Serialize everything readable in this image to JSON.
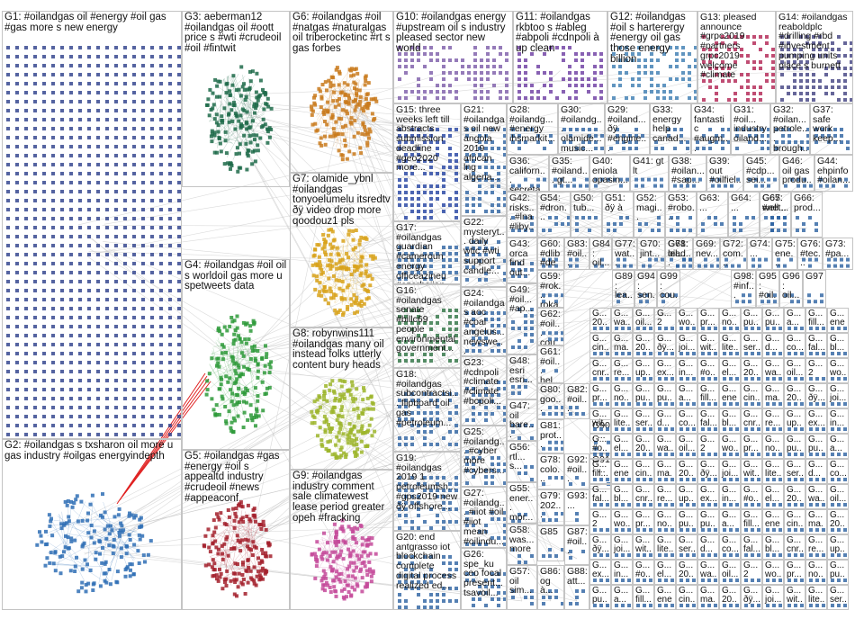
{
  "graph": {
    "groups": [
      {
        "id": "G1",
        "label": "G1: #oilandgas oil #energy #oil gas #gas more s new energy",
        "color": "#2a3d8a",
        "pattern": "grid"
      },
      {
        "id": "G2",
        "label": "G2: #oilandgas s txsharon oil more u gas industry #oilgas energyindepth",
        "color": "#2f6fb5",
        "pattern": "blob"
      },
      {
        "id": "G3",
        "label": "G3: aeberman12 #oilandgas oil #oott price s #wti #crudeoil #oil #fintwit",
        "color": "#1f6b4a",
        "pattern": "blob"
      },
      {
        "id": "G4",
        "label": "G4: #oilandgas #oil oil s worldoil gas more u spetweets data",
        "color": "#2e9a3a",
        "pattern": "blob"
      },
      {
        "id": "G5",
        "label": "G5: #oilandgas #gas #energy #oil s appealtd industry #crudeoil #news #appeaconf",
        "color": "#a3202c",
        "pattern": "blob"
      },
      {
        "id": "G6",
        "label": "G6: #oilandgas #oil #natgas #naturalgas oil triberocketinc #rt s gas forbes",
        "color": "#c97a1c",
        "pattern": "blob"
      },
      {
        "id": "G7",
        "label": "G7: olamide_ybnl #oilandgas tonyoelumelu itsredtv ðÿ video drop more qoodouz1 pls",
        "color": "#d8a21a",
        "pattern": "blob"
      },
      {
        "id": "G8",
        "label": "G8: robynwins111 #oilandgas many oil instead folks utterly content bury heads",
        "color": "#9cb52a",
        "pattern": "blob"
      },
      {
        "id": "G9",
        "label": "G9: #oilandgas industry comment sale climatewest lease period greater opeh #fracking",
        "color": "#c44a9a",
        "pattern": "blob"
      },
      {
        "id": "G10",
        "label": "G10: #oilandgas energy #upstream oil s industry pleased sector new world",
        "color": "#7a5aa8",
        "pattern": "grid"
      },
      {
        "id": "G11",
        "label": "G11: #oilandgas rkbtoo s #ableg #abpoli #cdnpoli à up clean",
        "color": "#6a3aa0",
        "pattern": "grid"
      },
      {
        "id": "G12",
        "label": "G12: #oilandgas #oil s harterergy #energy oil gas those energy billion",
        "color": "#3a7ab0",
        "pattern": "grid"
      },
      {
        "id": "G13",
        "label": "G13: pleased announce #grpc2019 #partners grpc2019 welcome #climate",
        "color": "#b02050",
        "pattern": "grid"
      },
      {
        "id": "G14",
        "label": "G14: #oilandgas reaboldplc #drilling #rbd #investment pumping units place s burnett",
        "color": "#404080",
        "pattern": "grid"
      },
      {
        "id": "G15",
        "label": "G15: three weeks left till abstracts submission deadline #geo2020 more...",
        "color": "#2040a0",
        "pattern": "grid"
      },
      {
        "id": "G16",
        "label": "G16: #oilandgas senate #billc69 people environmental government...",
        "color": "#2a7040",
        "pattern": "grid"
      },
      {
        "id": "G17",
        "label": "G17: #oilandgas guardian #cameroun energy officeazineu #azerbaijan...",
        "color": "#2a60a0",
        "pattern": "grid"
      },
      {
        "id": "G18",
        "label": "G18: #oilandgas subcontractsi... flipboard oil gas #petroleum...",
        "color": "#2a60a0",
        "pattern": "grid"
      },
      {
        "id": "G19",
        "label": "G19: #oilandgas 2019 1 petroleumsh... #gps2019 new ðÿ offshore...",
        "color": "#2a60a0",
        "pattern": "grid"
      },
      {
        "id": "G20",
        "label": "G20: end antgrasso iot blockchain complete digital process realized ed...",
        "color": "#2a60a0",
        "pattern": "grid"
      },
      {
        "id": "G21",
        "label": "G21: #oilandgas oil new angola 2019 african lng algeria...",
        "color": "#2a60a0",
        "pattern": "grid"
      },
      {
        "id": "G22",
        "label": "G22: mysteryt... daily wtic #wti support candle...",
        "color": "#2a60a0",
        "pattern": "grid"
      },
      {
        "id": "G23",
        "label": "G23: #cdnpoli #climate #climate #bcpoli...",
        "color": "#2a60a0",
        "pattern": "grid"
      },
      {
        "id": "G24",
        "label": "G24: #oilandgas aoc #coal angelus... newswe...",
        "color": "#2a60a0",
        "pattern": "grid"
      },
      {
        "id": "G25",
        "label": "G25: #oilandg... #cyber more #cybers...",
        "color": "#2a60a0",
        "pattern": "grid"
      },
      {
        "id": "G26",
        "label": "G26: spe_ku ceo focal present... tsavoil...",
        "color": "#2a60a0",
        "pattern": "grid"
      },
      {
        "id": "G27",
        "label": "G27: #oilandg... #iiot #oil #iiot mean #oilindu...",
        "color": "#2a60a0",
        "pattern": "grid"
      },
      {
        "id": "G28",
        "label": "G28: #oilandg... #energy ihsmarkit...",
        "color": "#2a60a0",
        "pattern": "grid"
      },
      {
        "id": "G29",
        "label": "G29: #oiland... ðÿ #engine...",
        "color": "#2a60a0",
        "pattern": "grid"
      },
      {
        "id": "G30",
        "label": "G30: #oilandg... olamide... music...",
        "color": "#2a60a0",
        "pattern": "grid"
      },
      {
        "id": "G31",
        "label": "G31: #oil... industry oiland...",
        "color": "#2a60a0",
        "pattern": "grid"
      },
      {
        "id": "G32",
        "label": "G32: #oilan... petrole... brough...",
        "color": "#2a60a0",
        "pattern": "grid"
      },
      {
        "id": "G33",
        "label": "G33: energy help canad...",
        "color": "#2a60a0",
        "pattern": "grid"
      },
      {
        "id": "G34",
        "label": "G34: fantastic #augm... event...",
        "color": "#2a60a0",
        "pattern": "grid"
      },
      {
        "id": "G35",
        "label": "G35: #oiland... gt...",
        "color": "#2a60a0",
        "pattern": "grid"
      },
      {
        "id": "G36",
        "label": "G36: californ... secreta...",
        "color": "#2a60a0",
        "pattern": "grid"
      },
      {
        "id": "G37",
        "label": "G37: safe work keep...",
        "color": "#2a60a0",
        "pattern": "grid"
      },
      {
        "id": "G38",
        "label": "G38: #oilan... #sap...",
        "color": "#2a60a0",
        "pattern": "grid"
      },
      {
        "id": "G39",
        "label": "G39: out #oilfiel...",
        "color": "#2a60a0",
        "pattern": "grid"
      },
      {
        "id": "G40",
        "label": "G40: eniola opasin...",
        "color": "#2a60a0",
        "pattern": "grid"
      },
      {
        "id": "G41",
        "label": "G41: gt lt",
        "color": "#2a60a0",
        "pattern": "grid"
      },
      {
        "id": "G42",
        "label": "G42: risks... #lna #liby...",
        "color": "#2a60a0",
        "pattern": "grid"
      },
      {
        "id": "G43",
        "label": "G43: orca find out... ...",
        "color": "#2a60a0",
        "pattern": "grid"
      },
      {
        "id": "G44",
        "label": "G44: ehpinfo #oilan...",
        "color": "#2a60a0",
        "pattern": "grid"
      },
      {
        "id": "G45",
        "label": "G45: #cdp... sei...",
        "color": "#2a60a0",
        "pattern": "grid"
      },
      {
        "id": "G46",
        "label": "G46: oil gas produ...",
        "color": "#2a60a0",
        "pattern": "grid"
      },
      {
        "id": "G47",
        "label": "G47: oil bare...",
        "color": "#2a60a0",
        "pattern": "grid"
      },
      {
        "id": "G48",
        "label": "G48: esri esri...",
        "color": "#2a60a0",
        "pattern": "grid"
      },
      {
        "id": "G49",
        "label": "G49: #oil... #ap...",
        "color": "#2a60a0",
        "pattern": "grid"
      },
      {
        "id": "G50",
        "label": "G50: tub...",
        "color": "#2a60a0",
        "pattern": "grid"
      },
      {
        "id": "G51",
        "label": "G51: ðÿ à",
        "color": "#2a60a0",
        "pattern": "grid"
      },
      {
        "id": "G52",
        "label": "G52: magi...",
        "color": "#2a60a0",
        "pattern": "grid"
      },
      {
        "id": "G53",
        "label": "G53: #robo...",
        "color": "#2a60a0",
        "pattern": "grid"
      },
      {
        "id": "G54",
        "label": "G54: #dron...",
        "color": "#2a60a0",
        "pattern": "grid"
      },
      {
        "id": "G55",
        "label": "G55: ener... mor...",
        "color": "#2a60a0",
        "pattern": "grid"
      },
      {
        "id": "G56",
        "label": "G56: rtl... s...",
        "color": "#2a60a0",
        "pattern": "grid"
      },
      {
        "id": "G57",
        "label": "G57: oil sim...",
        "color": "#2a60a0",
        "pattern": "grid"
      },
      {
        "id": "G58",
        "label": "G58: was... more",
        "color": "#2a60a0",
        "pattern": "grid"
      },
      {
        "id": "G59",
        "label": "G59: #rok... roka...",
        "color": "#2a60a0",
        "pattern": "grid"
      },
      {
        "id": "G60",
        "label": "G60: #dlib #dem...",
        "color": "#2a60a0",
        "pattern": "grid"
      },
      {
        "id": "G61",
        "label": "G61: #oil... hel...",
        "color": "#2a60a0",
        "pattern": "grid"
      },
      {
        "id": "G62",
        "label": "G62: #oil... cou...",
        "color": "#2a60a0",
        "pattern": "grid"
      },
      {
        "id": "G63",
        "label": "G63: ...",
        "color": "#2a60a0",
        "pattern": "grid"
      },
      {
        "id": "G64",
        "label": "G64: ...",
        "color": "#2a60a0",
        "pattern": "grid"
      },
      {
        "id": "G65",
        "label": "G65: #net...",
        "color": "#2a60a0",
        "pattern": "grid"
      },
      {
        "id": "G66",
        "label": "G66: prod...",
        "color": "#2a60a0",
        "pattern": "grid"
      },
      {
        "id": "G67",
        "label": "G67: well...",
        "color": "#2a60a0",
        "pattern": "grid"
      },
      {
        "id": "G68",
        "label": "G68: oil...",
        "color": "#2a60a0",
        "pattern": "grid"
      },
      {
        "id": "G69",
        "label": "G69: nev...",
        "color": "#2a60a0",
        "pattern": "grid"
      },
      {
        "id": "G70",
        "label": "G70: jint...",
        "color": "#2a60a0",
        "pattern": "grid"
      },
      {
        "id": "G71",
        "label": "G71: lead...",
        "color": "#2a60a0",
        "pattern": "grid"
      },
      {
        "id": "G72",
        "label": "G72: com...",
        "color": "#2a60a0",
        "pattern": "grid"
      },
      {
        "id": "G73",
        "label": "G73: #pa...",
        "color": "#2a60a0",
        "pattern": "grid"
      },
      {
        "id": "G74",
        "label": "G74: ...",
        "color": "#2a60a0",
        "pattern": "grid"
      },
      {
        "id": "G75",
        "label": "G75: ene...",
        "color": "#2a60a0",
        "pattern": "grid"
      },
      {
        "id": "G76",
        "label": "G76: #tec...",
        "color": "#2a60a0",
        "pattern": "grid"
      },
      {
        "id": "G77",
        "label": "G77: wat...",
        "color": "#2a60a0",
        "pattern": "grid"
      },
      {
        "id": "G78",
        "label": "G78: colo...",
        "color": "#2a60a0",
        "pattern": "grid"
      },
      {
        "id": "G79",
        "label": "G79: 202...",
        "color": "#2a60a0",
        "pattern": "grid"
      },
      {
        "id": "G80",
        "label": "G80: goo...",
        "color": "#2a60a0",
        "pattern": "grid"
      },
      {
        "id": "G81",
        "label": "G81: prot...",
        "color": "#2a60a0",
        "pattern": "grid"
      },
      {
        "id": "G82",
        "label": "G82: #oil...",
        "color": "#2a60a0",
        "pattern": "grid"
      },
      {
        "id": "G83",
        "label": "G83: #oil...",
        "color": "#2a60a0",
        "pattern": "grid"
      },
      {
        "id": "G84",
        "label": "G84: oil...",
        "color": "#2a60a0",
        "pattern": "grid"
      },
      {
        "id": "G85",
        "label": "G85",
        "color": "#2a60a0",
        "pattern": "grid"
      },
      {
        "id": "G86",
        "label": "G86: og à...",
        "color": "#2a60a0",
        "pattern": "grid"
      },
      {
        "id": "G87",
        "label": "G87: #oil...",
        "color": "#2a60a0",
        "pattern": "grid"
      },
      {
        "id": "G88",
        "label": "G88: att...",
        "color": "#2a60a0",
        "pattern": "grid"
      },
      {
        "id": "G89",
        "label": "G89: lea...",
        "color": "#2a60a0",
        "pattern": "grid"
      },
      {
        "id": "G90",
        "label": "G90: ...",
        "color": "#2a60a0",
        "pattern": "grid"
      },
      {
        "id": "G91",
        "label": "G91: ...",
        "color": "#2a60a0",
        "pattern": "grid"
      },
      {
        "id": "G92",
        "label": "G92: #oil...",
        "color": "#2a60a0",
        "pattern": "grid"
      },
      {
        "id": "G93",
        "label": "G93: ...",
        "color": "#2a60a0",
        "pattern": "grid"
      },
      {
        "id": "G94",
        "label": "G94: sen...",
        "color": "#2a60a0",
        "pattern": "grid"
      },
      {
        "id": "G95",
        "label": "G95: #oil...",
        "color": "#2a60a0",
        "pattern": "grid"
      },
      {
        "id": "G96",
        "label": "G96: oil...",
        "color": "#2a60a0",
        "pattern": "grid"
      },
      {
        "id": "G97",
        "label": "G97",
        "color": "#2a60a0",
        "pattern": "grid"
      },
      {
        "id": "G98",
        "label": "G98: #inf...",
        "color": "#2a60a0",
        "pattern": "grid"
      },
      {
        "id": "G99",
        "label": "G99: cou...",
        "color": "#2a60a0",
        "pattern": "grid"
      }
    ],
    "mini_labels": [
      "G...",
      "G...",
      "G...",
      "G...",
      "G...",
      "G...",
      "G...",
      "G...",
      "G...",
      "G...",
      "G...",
      "G...",
      "G...",
      "G..."
    ],
    "mini_words": [
      "20...",
      "wa...",
      "oil...",
      "2",
      "wo...",
      "pr...",
      "no...",
      "pu...",
      "pu...",
      "a...",
      "fill...",
      "ene...",
      "cin...",
      "ma...",
      "20...",
      "ðÿ...",
      "joi...",
      "wit...",
      "lite...",
      "ser...",
      "d...",
      "co...",
      "fal...",
      "bl...",
      "cnr...",
      "re...",
      "up...",
      "ex...",
      "in...",
      "#o...",
      "el..."
    ],
    "edge_color": "#bdbdbd",
    "highlight_edge_color": "#e02020"
  }
}
